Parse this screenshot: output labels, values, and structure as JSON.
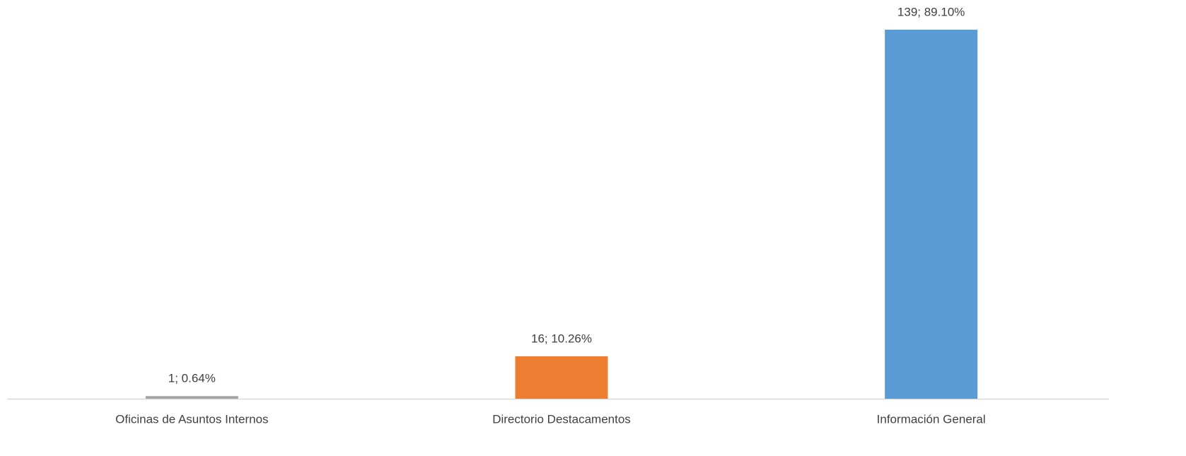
{
  "chart_data": {
    "type": "bar",
    "categories": [
      "Oficinas de Asuntos Internos",
      "Directorio Destacamentos",
      "Información General"
    ],
    "values": [
      1,
      16,
      139
    ],
    "value_labels": [
      "1; 0.64%",
      "16; 10.26%",
      "139; 89.10%"
    ],
    "colors": [
      "#a5a5a5",
      "#ed7d31",
      "#5b9bd5"
    ]
  }
}
